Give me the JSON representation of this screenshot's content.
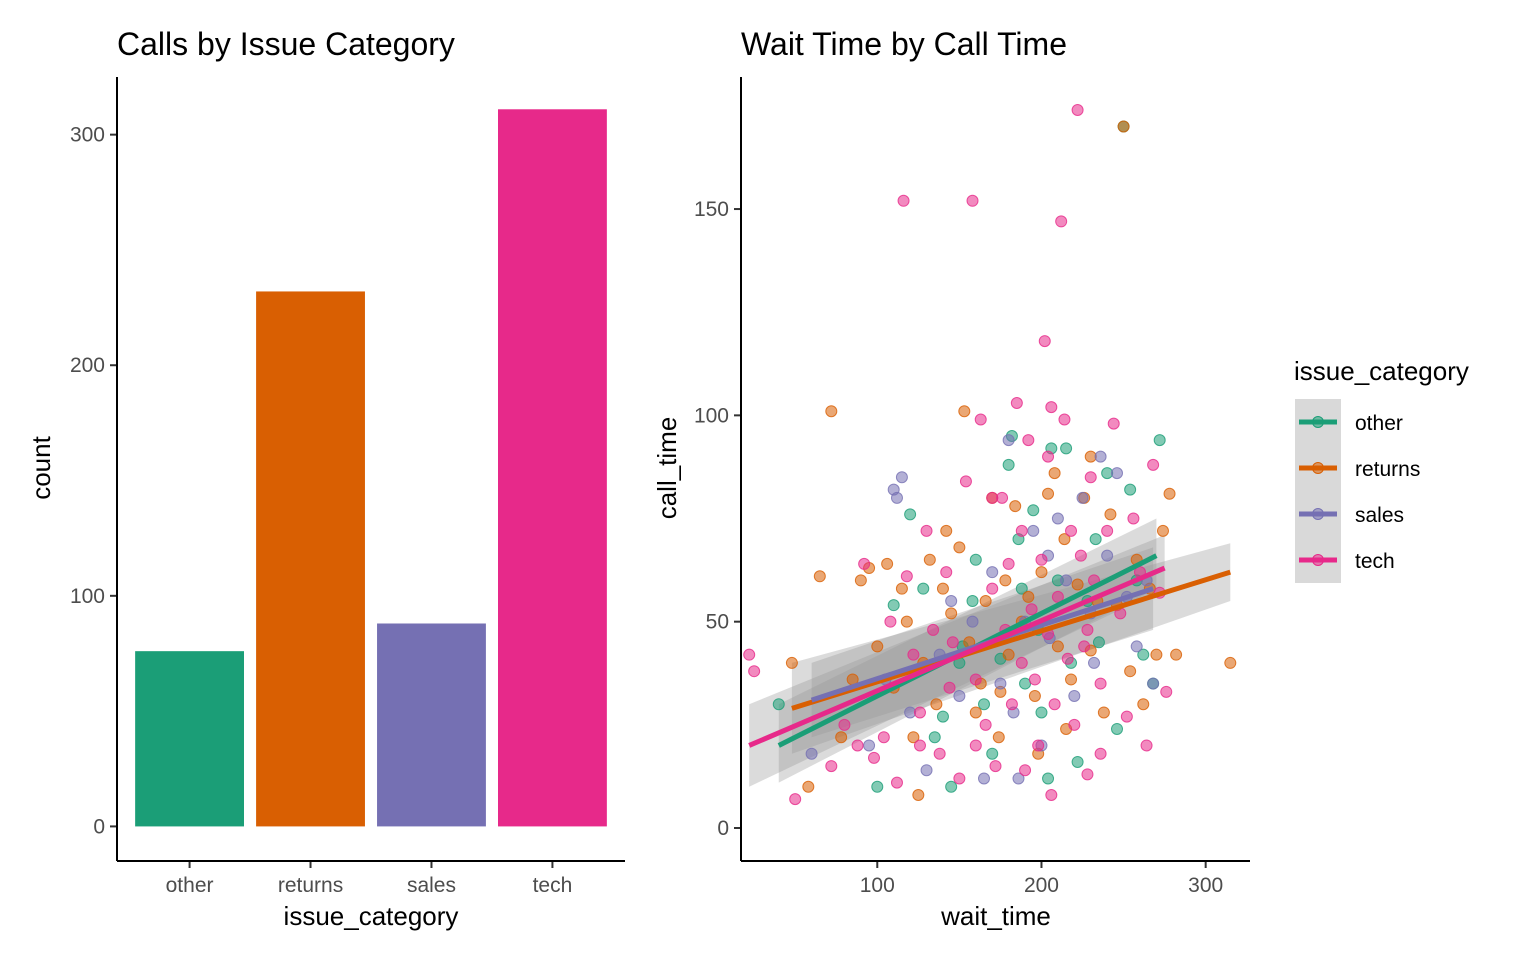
{
  "chart_data": [
    {
      "type": "bar",
      "title": "Calls by Issue Category",
      "xlabel": "issue_category",
      "ylabel": "count",
      "categories": [
        "other",
        "returns",
        "sales",
        "tech"
      ],
      "values": [
        76,
        232,
        88,
        311
      ],
      "colors": [
        "#1b9e77",
        "#d95f02",
        "#7570b3",
        "#e7298a"
      ],
      "ylim": [
        -15,
        325
      ],
      "yticks": [
        0,
        100,
        200,
        300
      ],
      "grid": false
    },
    {
      "type": "scatter",
      "title": "Wait Time by Call Time",
      "xlabel": "wait_time",
      "ylabel": "call_time",
      "xlim": [
        17,
        327
      ],
      "ylim": [
        -8,
        182
      ],
      "xticks": [
        100,
        200,
        300
      ],
      "yticks": [
        0,
        50,
        100,
        150
      ],
      "grid": false,
      "legend": {
        "title": "issue_category",
        "placement": "right",
        "entries": [
          "other",
          "returns",
          "sales",
          "tech"
        ]
      },
      "series": [
        {
          "name": "other",
          "color": "#1b9e77",
          "points": [
            [
              40,
              30
            ],
            [
              100,
              10
            ],
            [
              110,
              54
            ],
            [
              120,
              76
            ],
            [
              128,
              58
            ],
            [
              135,
              22
            ],
            [
              140,
              27
            ],
            [
              145,
              10
            ],
            [
              152,
              44
            ],
            [
              158,
              55
            ],
            [
              165,
              30
            ],
            [
              170,
              18
            ],
            [
              175,
              41
            ],
            [
              180,
              88
            ],
            [
              182,
              95
            ],
            [
              186,
              70
            ],
            [
              190,
              35
            ],
            [
              195,
              77
            ],
            [
              198,
              48
            ],
            [
              204,
              12
            ],
            [
              206,
              92
            ],
            [
              210,
              60
            ],
            [
              215,
              92
            ],
            [
              218,
              40
            ],
            [
              222,
              16
            ],
            [
              228,
              55
            ],
            [
              233,
              70
            ],
            [
              240,
              86
            ],
            [
              246,
              24
            ],
            [
              250,
              170
            ],
            [
              254,
              82
            ],
            [
              258,
              60
            ],
            [
              262,
              42
            ],
            [
              268,
              35
            ],
            [
              272,
              94
            ],
            [
              160,
              65
            ],
            [
              150,
              40
            ],
            [
              200,
              28
            ],
            [
              235,
              45
            ],
            [
              188,
              58
            ]
          ],
          "fit": [
            [
              40,
              20
            ],
            [
              270,
              66
            ]
          ],
          "band_start": [
            11,
            30
          ],
          "band_end": [
            58,
            75
          ]
        },
        {
          "name": "returns",
          "color": "#d95f02",
          "points": [
            [
              48,
              40
            ],
            [
              58,
              10
            ],
            [
              65,
              61
            ],
            [
              72,
              101
            ],
            [
              78,
              22
            ],
            [
              85,
              36
            ],
            [
              90,
              60
            ],
            [
              95,
              63
            ],
            [
              100,
              44
            ],
            [
              106,
              64
            ],
            [
              110,
              34
            ],
            [
              115,
              58
            ],
            [
              118,
              50
            ],
            [
              122,
              22
            ],
            [
              125,
              8
            ],
            [
              128,
              40
            ],
            [
              132,
              65
            ],
            [
              136,
              30
            ],
            [
              140,
              58
            ],
            [
              145,
              52
            ],
            [
              150,
              68
            ],
            [
              153,
              101
            ],
            [
              156,
              45
            ],
            [
              160,
              28
            ],
            [
              163,
              35
            ],
            [
              166,
              55
            ],
            [
              170,
              80
            ],
            [
              174,
              22
            ],
            [
              178,
              60
            ],
            [
              180,
              42
            ],
            [
              184,
              78
            ],
            [
              188,
              50
            ],
            [
              192,
              56
            ],
            [
              196,
              32
            ],
            [
              200,
              62
            ],
            [
              204,
              81
            ],
            [
              208,
              86
            ],
            [
              210,
              44
            ],
            [
              214,
              70
            ],
            [
              218,
              36
            ],
            [
              222,
              59
            ],
            [
              226,
              80
            ],
            [
              230,
              43
            ],
            [
              234,
              55
            ],
            [
              238,
              28
            ],
            [
              242,
              76
            ],
            [
              246,
              54
            ],
            [
              250,
              170
            ],
            [
              254,
              38
            ],
            [
              258,
              65
            ],
            [
              262,
              30
            ],
            [
              266,
              58
            ],
            [
              270,
              42
            ],
            [
              274,
              72
            ],
            [
              278,
              81
            ],
            [
              282,
              42
            ],
            [
              315,
              40
            ],
            [
              142,
              72
            ],
            [
              198,
              18
            ],
            [
              230,
              90
            ],
            [
              175,
              33
            ],
            [
              215,
              24
            ]
          ],
          "fit": [
            [
              48,
              29
            ],
            [
              315,
              62
            ]
          ],
          "band_start": [
            18,
            40
          ],
          "band_end": [
            55,
            69
          ]
        },
        {
          "name": "sales",
          "color": "#7570b3",
          "points": [
            [
              60,
              18
            ],
            [
              95,
              20
            ],
            [
              105,
              36
            ],
            [
              112,
              80
            ],
            [
              115,
              85
            ],
            [
              120,
              28
            ],
            [
              130,
              14
            ],
            [
              138,
              42
            ],
            [
              145,
              55
            ],
            [
              150,
              32
            ],
            [
              158,
              50
            ],
            [
              165,
              12
            ],
            [
              170,
              62
            ],
            [
              175,
              35
            ],
            [
              180,
              94
            ],
            [
              183,
              28
            ],
            [
              190,
              50
            ],
            [
              195,
              72
            ],
            [
              200,
              20
            ],
            [
              205,
              46
            ],
            [
              210,
              75
            ],
            [
              215,
              60
            ],
            [
              220,
              32
            ],
            [
              225,
              80
            ],
            [
              230,
              52
            ],
            [
              236,
              90
            ],
            [
              240,
              66
            ],
            [
              246,
              86
            ],
            [
              252,
              56
            ],
            [
              258,
              44
            ],
            [
              264,
              60
            ],
            [
              268,
              35
            ],
            [
              110,
              82
            ],
            [
              186,
              12
            ],
            [
              232,
              40
            ],
            [
              204,
              66
            ]
          ],
          "fit": [
            [
              60,
              31
            ],
            [
              268,
              58
            ]
          ],
          "band_start": [
            22,
            40
          ],
          "band_end": [
            48,
            68
          ]
        },
        {
          "name": "tech",
          "color": "#e7298a",
          "points": [
            [
              22,
              42
            ],
            [
              25,
              38
            ],
            [
              50,
              7
            ],
            [
              72,
              15
            ],
            [
              80,
              25
            ],
            [
              88,
              20
            ],
            [
              92,
              64
            ],
            [
              98,
              17
            ],
            [
              104,
              22
            ],
            [
              108,
              50
            ],
            [
              112,
              11
            ],
            [
              116,
              152
            ],
            [
              118,
              61
            ],
            [
              122,
              42
            ],
            [
              126,
              28
            ],
            [
              130,
              72
            ],
            [
              134,
              48
            ],
            [
              138,
              18
            ],
            [
              142,
              62
            ],
            [
              146,
              45
            ],
            [
              150,
              12
            ],
            [
              154,
              84
            ],
            [
              158,
              152
            ],
            [
              160,
              36
            ],
            [
              163,
              99
            ],
            [
              166,
              25
            ],
            [
              170,
              58
            ],
            [
              172,
              15
            ],
            [
              176,
              80
            ],
            [
              178,
              48
            ],
            [
              182,
              30
            ],
            [
              185,
              103
            ],
            [
              188,
              72
            ],
            [
              190,
              14
            ],
            [
              192,
              94
            ],
            [
              194,
              53
            ],
            [
              196,
              36
            ],
            [
              198,
              20
            ],
            [
              200,
              65
            ],
            [
              202,
              118
            ],
            [
              204,
              47
            ],
            [
              206,
              102
            ],
            [
              208,
              30
            ],
            [
              210,
              56
            ],
            [
              212,
              147
            ],
            [
              214,
              99
            ],
            [
              216,
              41
            ],
            [
              218,
              72
            ],
            [
              220,
              25
            ],
            [
              222,
              174
            ],
            [
              224,
              66
            ],
            [
              226,
              44
            ],
            [
              228,
              13
            ],
            [
              230,
              85
            ],
            [
              232,
              60
            ],
            [
              236,
              35
            ],
            [
              240,
              72
            ],
            [
              244,
              98
            ],
            [
              248,
              52
            ],
            [
              252,
              27
            ],
            [
              256,
              75
            ],
            [
              260,
              62
            ],
            [
              264,
              20
            ],
            [
              268,
              88
            ],
            [
              272,
              57
            ],
            [
              276,
              33
            ],
            [
              170,
              80
            ],
            [
              144,
              34
            ],
            [
              126,
              20
            ],
            [
              206,
              8
            ],
            [
              236,
              18
            ],
            [
              188,
              40
            ],
            [
              228,
              48
            ],
            [
              160,
              20
            ],
            [
              204,
              90
            ],
            [
              180,
              64
            ]
          ],
          "fit": [
            [
              22,
              20
            ],
            [
              275,
              63
            ]
          ],
          "band_start": [
            10,
            30
          ],
          "band_end": [
            58,
            71
          ]
        }
      ]
    }
  ]
}
